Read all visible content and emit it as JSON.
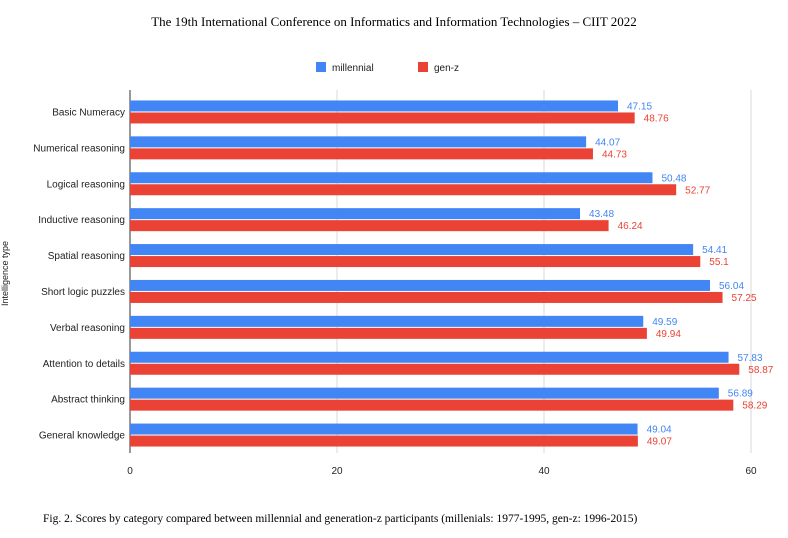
{
  "header": "The 19th International Conference on Informatics and Information Technologies – CIIT 2022",
  "caption": "Fig. 2.  Scores by category compared between millennial and generation-z participants (millenials: 1977-1995, gen-z: 1996-2015)",
  "chart_data": {
    "type": "bar",
    "orientation": "horizontal",
    "categories": [
      "Basic Numeracy",
      "Numerical reasoning",
      "Logical reasoning",
      "Inductive reasoning",
      "Spatial reasoning",
      "Short logic puzzles",
      "Verbal reasoning",
      "Attention to details",
      "Abstract thinking",
      "General knowledge"
    ],
    "series": [
      {
        "name": "millennial",
        "color": "#4285f4",
        "values": [
          47.15,
          44.07,
          50.48,
          43.48,
          54.41,
          56.04,
          49.59,
          57.83,
          56.89,
          49.04
        ]
      },
      {
        "name": "gen-z",
        "color": "#ea4335",
        "values": [
          48.76,
          44.73,
          52.77,
          46.24,
          55.1,
          57.25,
          49.94,
          58.87,
          58.29,
          49.07
        ]
      }
    ],
    "data_labels": [
      [
        "47.15",
        "44.07",
        "50.48",
        "43.48",
        "54.41",
        "56.04",
        "49.59",
        "57.83",
        "56.89",
        "49.04"
      ],
      [
        "48.76",
        "44.73",
        "52.77",
        "46.24",
        "55.1",
        "57.25",
        "49.94",
        "58.87",
        "58.29",
        "49.07"
      ]
    ],
    "xlim": [
      0,
      60
    ],
    "xticks": [
      "0",
      "20",
      "40",
      "60"
    ],
    "ylabel": "Intelligence type",
    "xlabel": "",
    "grid": true,
    "legend_position": "top-center"
  }
}
